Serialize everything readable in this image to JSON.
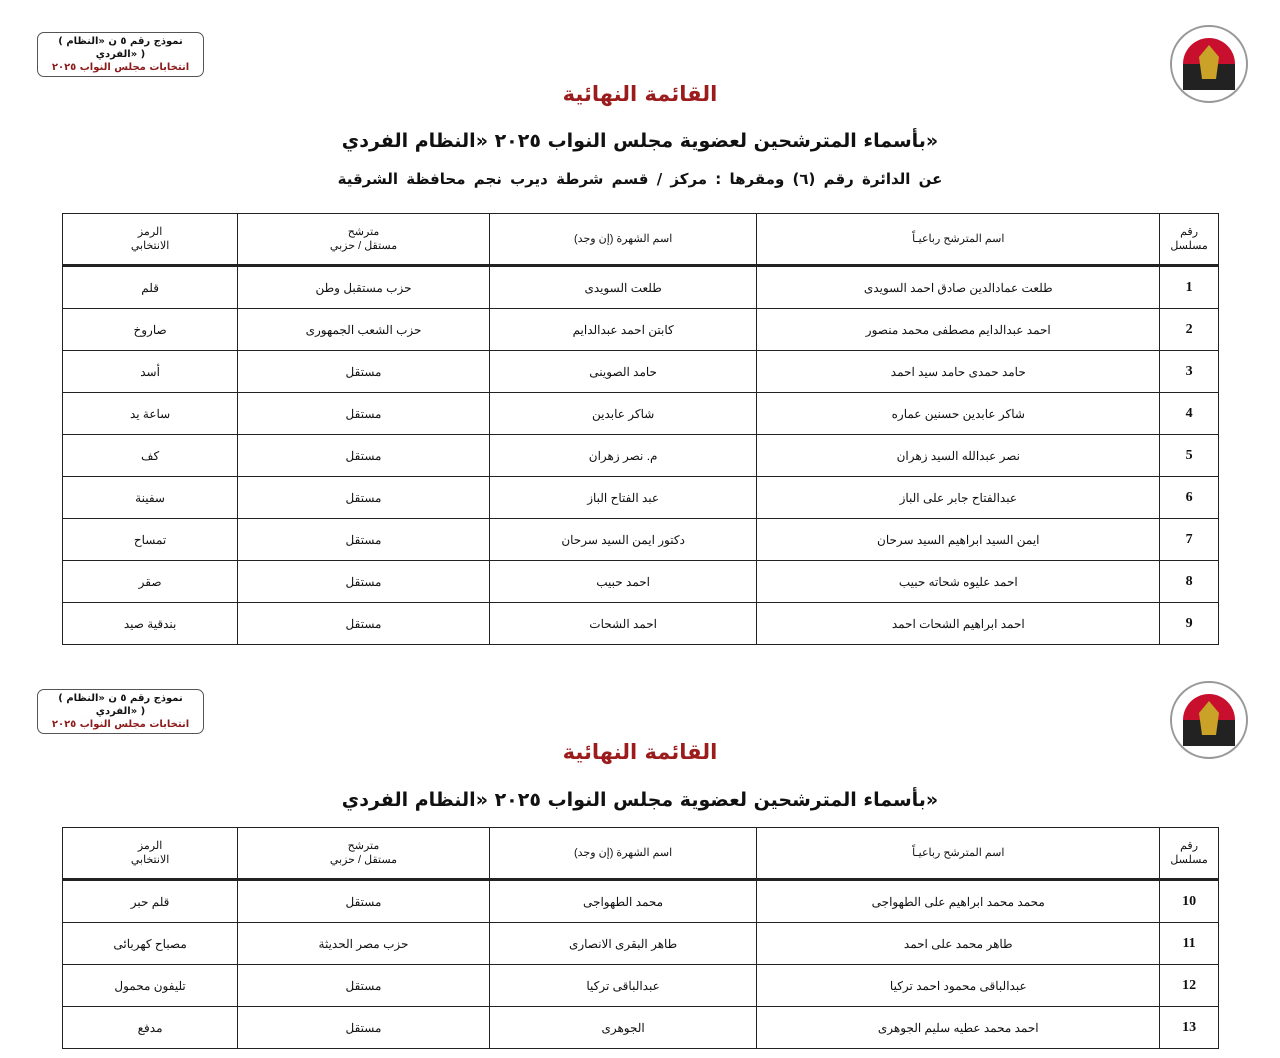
{
  "form_box": {
    "line1": "( نموذج رقم ٥ ن «النظام الفردي» )",
    "line2": "انتخابات مجلس النواب ٢٠٢٥"
  },
  "logo": {
    "text": "National Election Authority - Egypt",
    "icon": "egypt-eagle-seal"
  },
  "colors": {
    "title": "#9b1c1c"
  },
  "page1": {
    "title": "القائمة النهائية",
    "subtitle": "بأسماء المترشحين لعضوية مجلس النواب ٢٠٢٥ «النظام الفردي»",
    "district": "عن الدائرة رقم (٦)   ومقرها : مركز / قسم شرطة  ديرب نجم   محافظة  الشرقية"
  },
  "page2": {
    "title": "القائمة النهائية",
    "subtitle": "بأسماء المترشحين لعضوية مجلس النواب ٢٠٢٥ «النظام الفردي»"
  },
  "table_headers": {
    "serial": [
      "رقم",
      "مسلسل"
    ],
    "name": "اسم المترشح رباعيـاً",
    "fame": "اسم الشهرة (إن وجد)",
    "type": [
      "مترشح",
      "مستقل / حزبي"
    ],
    "symbol": [
      "الرمز",
      "الانتخابي"
    ]
  },
  "table1_rows": [
    {
      "num": "1",
      "name": "طلعت عمادالدين صادق احمد السويدى",
      "fame": "طلعت السويدى",
      "type": "حزب مستقبل وطن",
      "symbol": "قلم"
    },
    {
      "num": "2",
      "name": "احمد عبدالدايم مصطفى محمد منصور",
      "fame": "كابتن احمد عبدالدايم",
      "type": "حزب الشعب الجمهورى",
      "symbol": "صاروخ"
    },
    {
      "num": "3",
      "name": "حامد حمدى حامد سيد احمد",
      "fame": "حامد الصوينى",
      "type": "مستقل",
      "symbol": "أسد"
    },
    {
      "num": "4",
      "name": "شاكر عابدين حسنين عماره",
      "fame": "شاكر عابدين",
      "type": "مستقل",
      "symbol": "ساعة يد"
    },
    {
      "num": "5",
      "name": "نصر عبدالله السيد زهران",
      "fame": "م. نصر زهران",
      "type": "مستقل",
      "symbol": "كف"
    },
    {
      "num": "6",
      "name": "عبدالفتاح جابر على الباز",
      "fame": "عبد الفتاح الباز",
      "type": "مستقل",
      "symbol": "سفينة"
    },
    {
      "num": "7",
      "name": "ايمن السيد ابراهيم السيد سرحان",
      "fame": "دكتور ايمن السيد سرحان",
      "type": "مستقل",
      "symbol": "تمساح"
    },
    {
      "num": "8",
      "name": "احمد عليوه شحاته حبيب",
      "fame": "احمد حبيب",
      "type": "مستقل",
      "symbol": "صقر"
    },
    {
      "num": "9",
      "name": "احمد ابراهيم الشحات احمد",
      "fame": "احمد الشحات",
      "type": "مستقل",
      "symbol": "بندقية صيد"
    }
  ],
  "table2_rows": [
    {
      "num": "10",
      "name": "محمد محمد ابراهيم على الطهواجى",
      "fame": "محمد الطهواجى",
      "type": "مستقل",
      "symbol": "قلم حبر"
    },
    {
      "num": "11",
      "name": "طاهر محمد على احمد",
      "fame": "طاهر البقرى الانصارى",
      "type": "حزب مصر الحديثة",
      "symbol": "مصباح كهربائى"
    },
    {
      "num": "12",
      "name": "عبدالباقى محمود احمد تركيا",
      "fame": "عبدالباقى تركيا",
      "type": "مستقل",
      "symbol": "تليفون محمول"
    },
    {
      "num": "13",
      "name": "احمد محمد عطيه سليم الجوهرى",
      "fame": "الجوهرى",
      "type": "مستقل",
      "symbol": "مدفع"
    }
  ]
}
